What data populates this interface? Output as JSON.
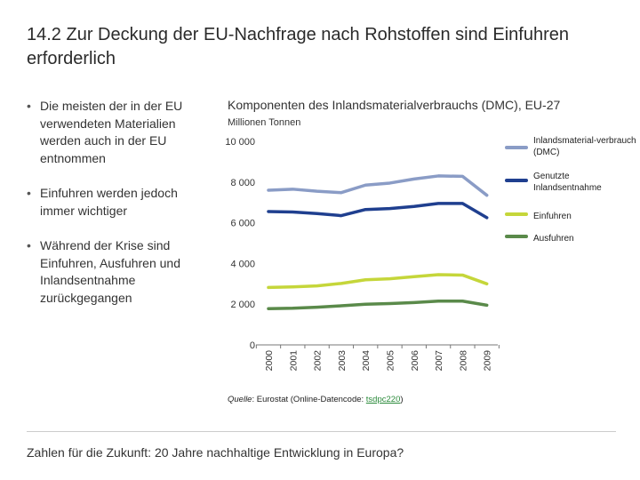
{
  "title": "14.2 Zur Deckung der EU-Nachfrage nach Rohstoffen sind Einfuhren erforderlich",
  "bullets": [
    "Die meisten der in der EU verwendeten Materialien werden auch in der EU entnommen",
    "Einfuhren werden jedoch immer wichtiger",
    "Während der Krise sind Einfuhren, Ausfuhren und Inlandsentnahme zurückgegangen"
  ],
  "source": {
    "label": "Quelle",
    "text": ": Eurostat (Online-Datencode: ",
    "code": "tsdpc220",
    "close": ")"
  },
  "footer": "Zahlen für die Zukunft: 20 Jahre nachhaltige Entwicklung in Europa?",
  "colors": {
    "dmc": "#8a9cc6",
    "extraction": "#1f3f8f",
    "imports": "#c5d63a",
    "exports": "#5a8a4a",
    "axis": "#777777"
  },
  "chart_data": {
    "type": "line",
    "title": "Komponenten des Inlandsmaterialverbrauchs (DMC), EU-27",
    "ylabel": "Millionen Tonnen",
    "xlabel": "",
    "x": [
      "2000",
      "2001",
      "2002",
      "2003",
      "2004",
      "2005",
      "2006",
      "2007",
      "2008",
      "2009"
    ],
    "ylim": [
      0,
      10000
    ],
    "yticks": [
      0,
      2000,
      4000,
      6000,
      8000,
      10000
    ],
    "ytick_labels": [
      "0",
      "2 000",
      "4 000",
      "6 000",
      "8 000",
      "10 000"
    ],
    "grid": false,
    "legend_position": "right",
    "series": [
      {
        "name": "Inlandsmaterial-verbrauch (DMC)",
        "color": "#8a9cc6",
        "values": [
          7600,
          7650,
          7550,
          7480,
          7850,
          7950,
          8150,
          8300,
          8280,
          7350
        ]
      },
      {
        "name": "Genutzte Inlandsentnahme",
        "color": "#1f3f8f",
        "values": [
          6550,
          6530,
          6450,
          6350,
          6650,
          6700,
          6800,
          6950,
          6950,
          6250
        ]
      },
      {
        "name": "Einfuhren",
        "color": "#c5d63a",
        "values": [
          2820,
          2850,
          2900,
          3020,
          3200,
          3250,
          3350,
          3450,
          3430,
          3000
        ]
      },
      {
        "name": "Ausfuhren",
        "color": "#5a8a4a",
        "values": [
          1780,
          1800,
          1850,
          1920,
          2000,
          2030,
          2080,
          2150,
          2150,
          1950
        ]
      }
    ]
  }
}
